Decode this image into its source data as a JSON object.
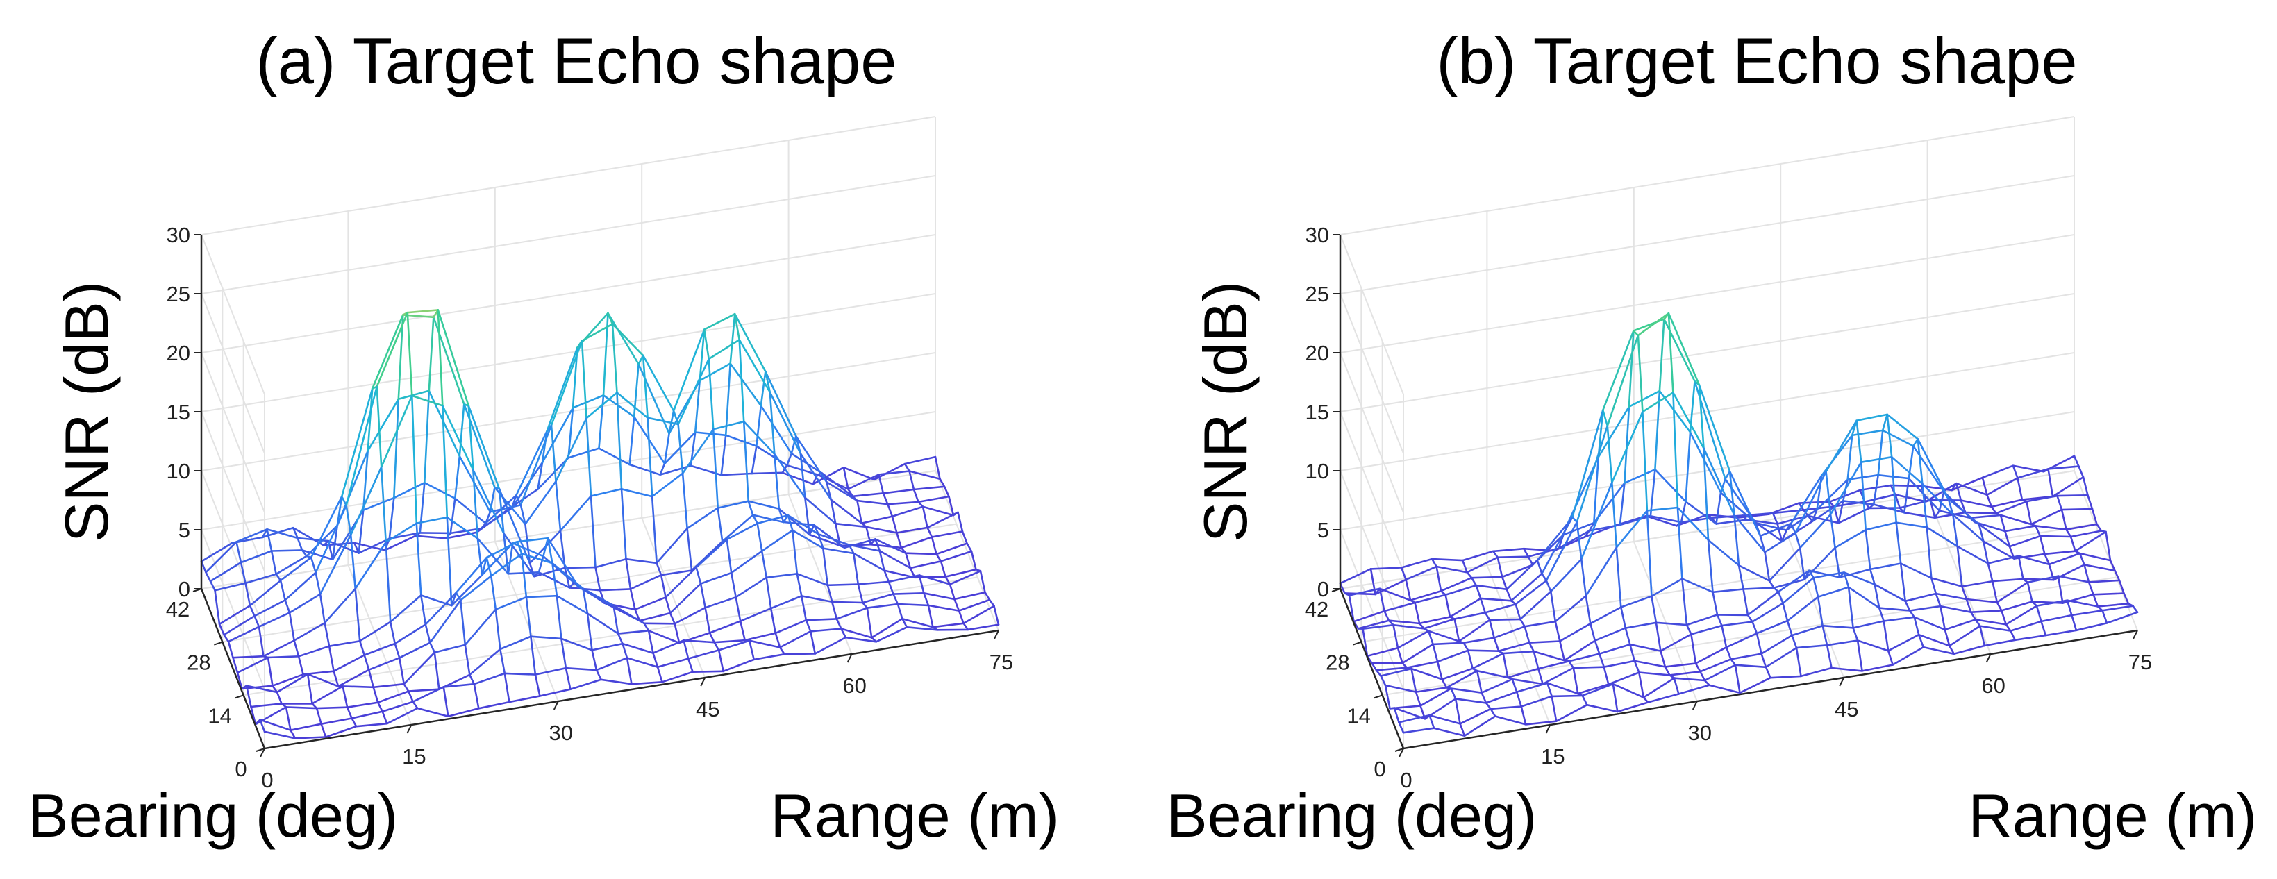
{
  "chart_data": [
    {
      "type": "surface",
      "title": "(a) Target Echo shape",
      "xlabel": "Range (m)",
      "ylabel": "Bearing (deg)",
      "zlabel": "SNR (dB)",
      "xlim": [
        0,
        75
      ],
      "ylim": [
        0,
        42
      ],
      "zlim": [
        0,
        30
      ],
      "xticks": [
        "0",
        "15",
        "30",
        "45",
        "60",
        "75"
      ],
      "yticks": [
        "0",
        "14",
        "28",
        "42"
      ],
      "zticks": [
        "0",
        "5",
        "10",
        "15",
        "20",
        "25",
        "30"
      ],
      "grid": true,
      "colormap": [
        "#4b3bd6",
        "#2f7ff0",
        "#1fb4d8",
        "#3ccf90",
        "#f5d24a"
      ],
      "peaks": [
        {
          "range": 20,
          "bearing": 28,
          "snr": 27
        },
        {
          "range": 40,
          "bearing": 34,
          "snr": 20
        },
        {
          "range": 52,
          "bearing": 32,
          "snr": 19
        },
        {
          "range": 28,
          "bearing": 14,
          "snr": 9
        },
        {
          "range": 55,
          "bearing": 18,
          "snr": 6
        },
        {
          "range": 6,
          "bearing": 38,
          "snr": 4
        },
        {
          "range": 10,
          "bearing": 30,
          "snr": 4
        }
      ]
    },
    {
      "type": "surface",
      "title": "(b) Target Echo shape",
      "xlabel": "Range (m)",
      "ylabel": "Bearing (deg)",
      "zlabel": "SNR (dB)",
      "xlim": [
        0,
        75
      ],
      "ylim": [
        0,
        42
      ],
      "zlim": [
        0,
        30
      ],
      "xticks": [
        "0",
        "15",
        "30",
        "45",
        "60",
        "75"
      ],
      "yticks": [
        "0",
        "14",
        "28",
        "42"
      ],
      "zticks": [
        "0",
        "5",
        "10",
        "15",
        "20",
        "25",
        "30"
      ],
      "grid": true,
      "colormap": [
        "#4b3bd6",
        "#2f7ff0",
        "#1fb4d8",
        "#3ccf90",
        "#f5d24a"
      ],
      "peaks": [
        {
          "range": 30,
          "bearing": 28,
          "snr": 24
        },
        {
          "range": 52,
          "bearing": 24,
          "snr": 13
        },
        {
          "range": 45,
          "bearing": 12,
          "snr": 4
        }
      ]
    }
  ]
}
